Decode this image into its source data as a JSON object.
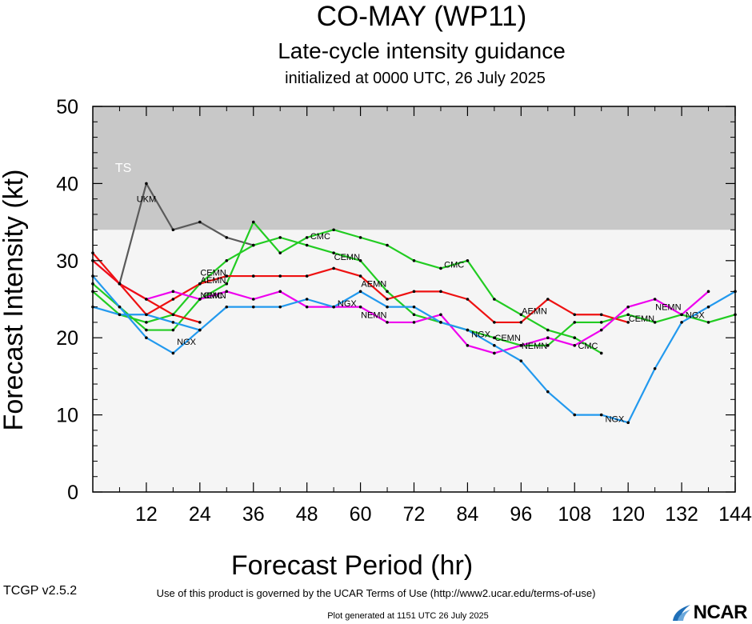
{
  "header": {
    "title": "CO-MAY (WP11)",
    "subtitle": "Late-cycle intensity guidance",
    "init": "initialized at 0000 UTC, 26 July 2025"
  },
  "footer": {
    "terms": "Use of this product is governed by the UCAR Terms of Use (http://www2.ucar.edu/terms-of-use)",
    "generated": "Plot generated at 1151 UTC   26 July 2025",
    "version": "TCGP v2.5.2",
    "logo": "NCAR"
  },
  "chart_data": {
    "type": "line",
    "xlabel": "Forecast Period (hr)",
    "ylabel": "Forecast Intensity (kt)",
    "xlim": [
      0,
      144
    ],
    "ylim": [
      0,
      50
    ],
    "xticks": [
      12,
      24,
      36,
      48,
      60,
      72,
      84,
      96,
      108,
      120,
      132,
      144
    ],
    "yticks": [
      0,
      10,
      20,
      30,
      40,
      50
    ],
    "band": {
      "label": "TS",
      "from": 34,
      "to": 50,
      "color": "#c8c8c8"
    },
    "background": "#f5f5f5",
    "series": [
      {
        "name": "UKM",
        "color": "#5a5a5a",
        "x": [
          6,
          12,
          18,
          24,
          30,
          36
        ],
        "y": [
          27,
          40,
          34,
          35,
          33,
          32
        ],
        "labels": [
          {
            "x": 12,
            "y": 38
          }
        ]
      },
      {
        "name": "CMC",
        "color": "#22cc22",
        "x": [
          0,
          6,
          12,
          18,
          24,
          30,
          36,
          42,
          48,
          54,
          60,
          66,
          72,
          78,
          84,
          90,
          96,
          102,
          108,
          114
        ],
        "y": [
          27,
          24,
          21,
          21,
          25,
          27,
          35,
          31,
          33,
          34,
          33,
          32,
          30,
          29,
          30,
          25,
          23,
          21,
          20,
          18
        ],
        "labels": [
          {
            "x": 27,
            "y": 25.5
          },
          {
            "x": 51,
            "y": 33.2
          },
          {
            "x": 81,
            "y": 29.5
          },
          {
            "x": 111,
            "y": 19
          }
        ]
      },
      {
        "name": "CEMN",
        "color": "#22cc22",
        "x": [
          0,
          6,
          12,
          18,
          24,
          30,
          36,
          42,
          48,
          54,
          60,
          66,
          72,
          78,
          84,
          90,
          96,
          102,
          108,
          114,
          120,
          126,
          132,
          138,
          144
        ],
        "y": [
          26,
          23,
          22,
          23,
          27,
          30,
          32,
          33,
          32,
          31,
          30,
          26,
          23,
          22,
          21,
          20,
          19,
          19,
          22,
          22,
          23,
          22,
          23,
          22,
          23
        ],
        "labels": [
          {
            "x": 27,
            "y": 28.5
          },
          {
            "x": 57,
            "y": 30.5
          },
          {
            "x": 93,
            "y": 20
          },
          {
            "x": 123,
            "y": 22.5
          }
        ]
      },
      {
        "name": "AEMN",
        "color": "#ee1111",
        "x": [
          0,
          6,
          12,
          18,
          24,
          30,
          36,
          42,
          48,
          54,
          60,
          66,
          72,
          78,
          84,
          90,
          96,
          102,
          108,
          114,
          120
        ],
        "y": [
          31,
          27,
          23,
          25,
          27,
          28,
          28,
          28,
          28,
          29,
          28,
          25,
          26,
          26,
          25,
          22,
          22,
          25,
          23,
          23,
          22
        ],
        "labels": [
          {
            "x": 27,
            "y": 27.5
          },
          {
            "x": 63,
            "y": 27
          },
          {
            "x": 99,
            "y": 23.5
          }
        ]
      },
      {
        "name": "NEMN",
        "color": "#ee00ee",
        "x": [
          0,
          6,
          12,
          18,
          24,
          30,
          36,
          42,
          48,
          54,
          60,
          66,
          72,
          78,
          84,
          90,
          96,
          102,
          108,
          114,
          120,
          126,
          132,
          138
        ],
        "y": [
          30,
          27,
          25,
          26,
          25,
          26,
          25,
          26,
          24,
          24,
          24,
          22,
          22,
          23,
          19,
          18,
          19,
          20,
          19,
          21,
          24,
          25,
          23,
          26
        ],
        "labels": [
          {
            "x": 27,
            "y": 25.5
          },
          {
            "x": 63,
            "y": 23
          },
          {
            "x": 99,
            "y": 19
          },
          {
            "x": 129,
            "y": 24
          }
        ]
      },
      {
        "name": "NGX",
        "color": "#2299ee",
        "x": [
          0,
          6,
          12,
          18,
          24,
          30,
          36,
          42,
          48,
          54,
          60,
          66,
          72,
          78,
          84,
          90,
          96,
          102,
          108,
          114,
          120,
          126,
          132,
          138,
          144
        ],
        "y": [
          28,
          24,
          20,
          18,
          21,
          24,
          24,
          24,
          25,
          24,
          26,
          24,
          24,
          22,
          21,
          19,
          17,
          13,
          10,
          10,
          9,
          16,
          22,
          24,
          26
        ],
        "labels": [
          {
            "x": 21,
            "y": 19.5
          },
          {
            "x": 57,
            "y": 24.5
          },
          {
            "x": 87,
            "y": 20.5
          },
          {
            "x": 117,
            "y": 9.5
          },
          {
            "x": 135,
            "y": 23
          }
        ]
      },
      {
        "name": "",
        "color": "#ee1111",
        "x": [
          0,
          6,
          12,
          18,
          24
        ],
        "y": [
          30,
          27,
          25,
          23,
          22
        ],
        "labels": []
      },
      {
        "name": "",
        "color": "#2299ee",
        "x": [
          0,
          6,
          12,
          18,
          24
        ],
        "y": [
          24,
          23,
          23,
          22,
          21
        ],
        "labels": []
      }
    ]
  }
}
